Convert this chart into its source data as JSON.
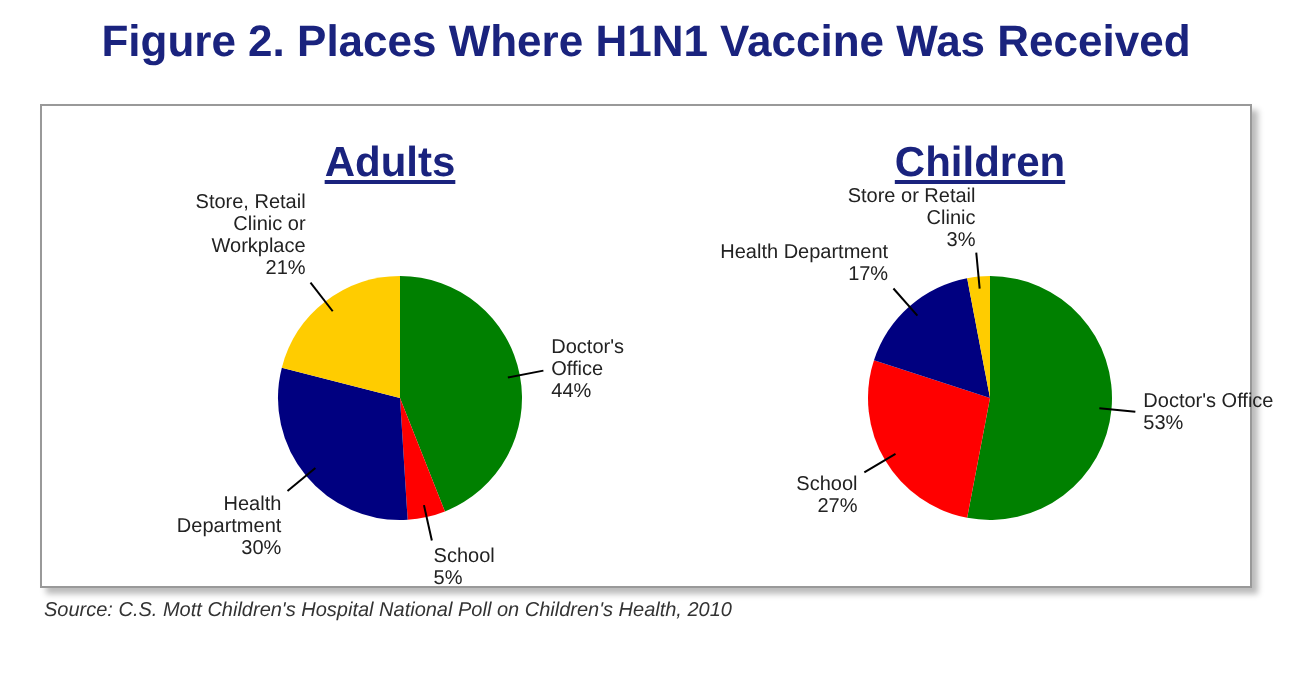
{
  "chart_data": [
    {
      "type": "pie",
      "title": "Adults",
      "categories": [
        "Doctor's Office",
        "School",
        "Health Department",
        "Store, Retail Clinic or Workplace"
      ],
      "values": [
        44,
        5,
        30,
        21
      ],
      "value_labels": [
        "44%",
        "5%",
        "30%",
        "21%"
      ],
      "colors": [
        "#008000",
        "#ff0000",
        "#000080",
        "#ffcc00"
      ],
      "legend": false,
      "annotations": [
        "Figure 2. Places Where H1N1 Vaccine Was Received",
        "Source: C.S. Mott Children's Hospital National Poll on Children's Health, 2010"
      ]
    },
    {
      "type": "pie",
      "title": "Children",
      "categories": [
        "Doctor's Office",
        "School",
        "Health Department",
        "Store or Retail Clinic"
      ],
      "values": [
        53,
        27,
        17,
        3
      ],
      "value_labels": [
        "53%",
        "27%",
        "17%",
        "3%"
      ],
      "colors": [
        "#008000",
        "#ff0000",
        "#000080",
        "#ffcc00"
      ],
      "legend": false
    }
  ]
}
